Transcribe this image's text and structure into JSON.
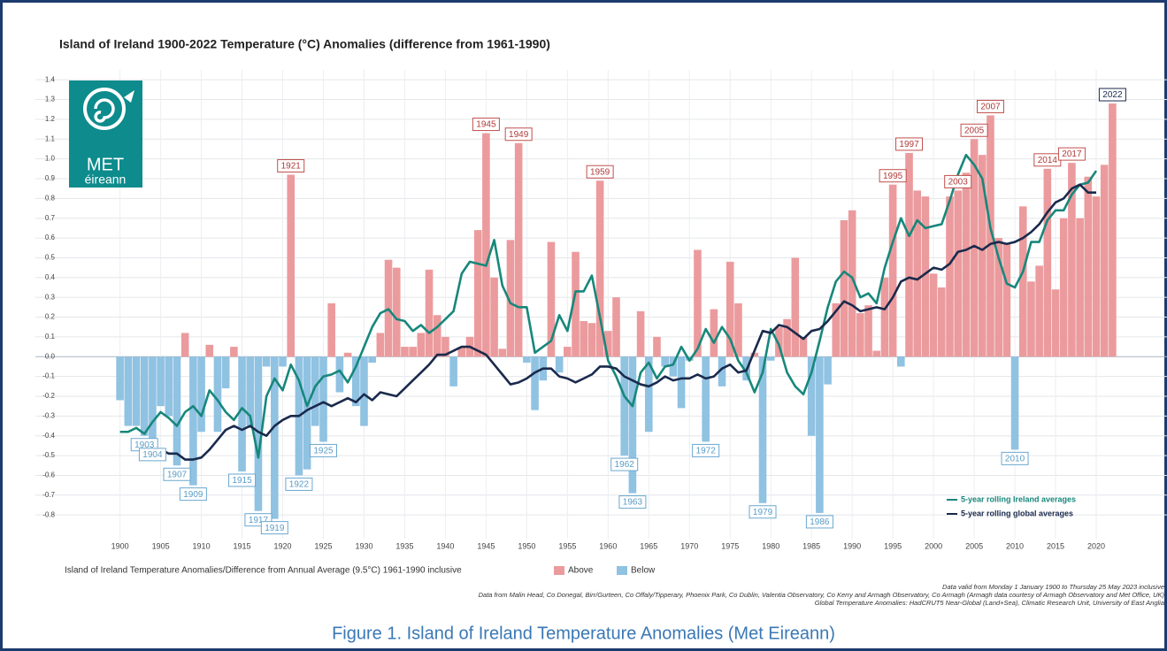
{
  "chart_data": {
    "type": "bar",
    "title": "Island of Ireland 1900-2022 Temperature (°C) Anomalies (difference from 1961-1990)",
    "x": [
      1900,
      1901,
      1902,
      1903,
      1904,
      1905,
      1906,
      1907,
      1908,
      1909,
      1910,
      1911,
      1912,
      1913,
      1914,
      1915,
      1916,
      1917,
      1918,
      1919,
      1920,
      1921,
      1922,
      1923,
      1924,
      1925,
      1926,
      1927,
      1928,
      1929,
      1930,
      1931,
      1932,
      1933,
      1934,
      1935,
      1936,
      1937,
      1938,
      1939,
      1940,
      1941,
      1942,
      1943,
      1944,
      1945,
      1946,
      1947,
      1948,
      1949,
      1950,
      1951,
      1952,
      1953,
      1954,
      1955,
      1956,
      1957,
      1958,
      1959,
      1960,
      1961,
      1962,
      1963,
      1964,
      1965,
      1966,
      1967,
      1968,
      1969,
      1970,
      1971,
      1972,
      1973,
      1974,
      1975,
      1976,
      1977,
      1978,
      1979,
      1980,
      1981,
      1982,
      1983,
      1984,
      1985,
      1986,
      1987,
      1988,
      1989,
      1990,
      1991,
      1992,
      1993,
      1994,
      1995,
      1996,
      1997,
      1998,
      1999,
      2000,
      2001,
      2002,
      2003,
      2004,
      2005,
      2006,
      2007,
      2008,
      2009,
      2010,
      2011,
      2012,
      2013,
      2014,
      2015,
      2016,
      2017,
      2018,
      2019,
      2020,
      2021,
      2022
    ],
    "values": [
      -0.22,
      -0.35,
      -0.35,
      -0.4,
      -0.45,
      -0.25,
      -0.3,
      -0.55,
      0.12,
      -0.65,
      -0.38,
      0.06,
      -0.38,
      -0.16,
      0.05,
      -0.58,
      -0.35,
      -0.78,
      -0.05,
      -0.82,
      -0.05,
      0.92,
      -0.6,
      -0.57,
      -0.35,
      -0.43,
      0.27,
      -0.18,
      0.02,
      -0.25,
      -0.35,
      -0.03,
      0.12,
      0.49,
      0.45,
      0.05,
      0.05,
      0.12,
      0.44,
      0.21,
      0.1,
      -0.15,
      0.05,
      0.1,
      0.64,
      1.13,
      0.4,
      0.04,
      0.59,
      1.08,
      -0.03,
      -0.27,
      -0.12,
      0.58,
      -0.08,
      0.05,
      0.53,
      0.18,
      0.17,
      0.89,
      0.13,
      0.3,
      -0.5,
      -0.69,
      0.23,
      -0.38,
      0.1,
      -0.05,
      -0.1,
      -0.26,
      -0.02,
      0.54,
      -0.43,
      0.24,
      -0.15,
      0.48,
      0.27,
      -0.12,
      0.02,
      -0.74,
      -0.02,
      0.15,
      0.19,
      0.5,
      0.1,
      -0.4,
      -0.79,
      -0.14,
      0.27,
      0.69,
      0.74,
      0.22,
      0.26,
      0.03,
      0.4,
      0.87,
      -0.05,
      1.03,
      0.84,
      0.81,
      0.42,
      0.35,
      0.81,
      0.84,
      0.93,
      1.1,
      1.02,
      1.22,
      0.6,
      0.57,
      -0.47,
      0.76,
      0.38,
      0.46,
      0.95,
      0.34,
      0.7,
      0.98,
      0.7,
      0.91,
      0.81,
      0.97,
      1.28
    ],
    "bar_colors": {
      "positive": "#eb9b9d",
      "negative": "#90c2e2"
    },
    "legend_title": "Island of Ireland Temperature Anomalies/Difference from Annual Average (9.5°C) 1961-1990 inclusive",
    "legend_items": [
      "Above",
      "Below"
    ],
    "lines": [
      {
        "name": "5-year rolling Ireland averages",
        "color": "#17877b",
        "values": [
          -0.38,
          -0.38,
          -0.36,
          -0.39,
          -0.33,
          -0.28,
          -0.31,
          -0.35,
          -0.28,
          -0.25,
          -0.3,
          -0.17,
          -0.22,
          -0.28,
          -0.32,
          -0.26,
          -0.3,
          -0.51,
          -0.2,
          -0.11,
          -0.17,
          -0.04,
          -0.12,
          -0.25,
          -0.15,
          -0.1,
          -0.09,
          -0.07,
          -0.13,
          -0.05,
          0.05,
          0.15,
          0.22,
          0.24,
          0.19,
          0.18,
          0.13,
          0.16,
          0.12,
          0.15,
          0.19,
          0.23,
          0.42,
          0.48,
          0.47,
          0.46,
          0.59,
          0.36,
          0.27,
          0.25,
          0.25,
          0.02,
          0.05,
          0.08,
          0.21,
          0.13,
          0.33,
          0.33,
          0.41,
          0.2,
          -0.02,
          -0.1,
          -0.2,
          -0.25,
          -0.08,
          -0.03,
          -0.11,
          -0.05,
          -0.04,
          0.05,
          -0.02,
          0.04,
          0.14,
          0.07,
          0.15,
          0.09,
          -0.02,
          -0.08,
          -0.18,
          -0.08,
          0.14,
          0.06,
          -0.08,
          -0.15,
          -0.19,
          -0.08,
          0.08,
          0.25,
          0.38,
          0.43,
          0.4,
          0.3,
          0.32,
          0.27,
          0.45,
          0.58,
          0.7,
          0.61,
          0.69,
          0.65,
          0.66,
          0.67,
          0.79,
          0.92,
          1.02,
          0.97,
          0.9,
          0.65,
          0.5,
          0.37,
          0.35,
          0.43,
          0.58,
          0.58,
          0.69,
          0.74,
          0.74,
          0.82,
          0.87,
          0.88,
          0.94,
          null,
          null
        ]
      },
      {
        "name": "5-year rolling global averages",
        "color": "#1a2a4c",
        "values": [
          null,
          null,
          -0.42,
          -0.45,
          -0.47,
          -0.47,
          -0.49,
          -0.49,
          -0.52,
          -0.52,
          -0.51,
          -0.47,
          -0.42,
          -0.37,
          -0.35,
          -0.37,
          -0.35,
          -0.38,
          -0.4,
          -0.35,
          -0.32,
          -0.3,
          -0.3,
          -0.27,
          -0.25,
          -0.23,
          -0.25,
          -0.23,
          -0.21,
          -0.23,
          -0.19,
          -0.22,
          -0.18,
          -0.19,
          -0.2,
          -0.16,
          -0.12,
          -0.08,
          -0.04,
          0.01,
          0.01,
          0.03,
          0.05,
          0.05,
          0.03,
          0.01,
          -0.04,
          -0.09,
          -0.14,
          -0.13,
          -0.11,
          -0.08,
          -0.06,
          -0.06,
          -0.1,
          -0.11,
          -0.13,
          -0.11,
          -0.09,
          -0.05,
          -0.05,
          -0.06,
          -0.1,
          -0.12,
          -0.14,
          -0.15,
          -0.13,
          -0.1,
          -0.12,
          -0.11,
          -0.11,
          -0.09,
          -0.11,
          -0.1,
          -0.06,
          -0.04,
          -0.08,
          -0.07,
          0.03,
          0.13,
          0.12,
          0.16,
          0.15,
          0.12,
          0.09,
          0.13,
          0.14,
          0.18,
          0.23,
          0.28,
          0.26,
          0.23,
          0.24,
          0.25,
          0.24,
          0.3,
          0.38,
          0.4,
          0.39,
          0.42,
          0.45,
          0.44,
          0.47,
          0.53,
          0.54,
          0.56,
          0.54,
          0.57,
          0.58,
          0.57,
          0.58,
          0.6,
          0.63,
          0.67,
          0.73,
          0.78,
          0.8,
          0.85,
          0.87,
          0.83,
          0.83,
          null,
          null
        ]
      }
    ],
    "xlim": [
      1889.6,
      2028.7
    ],
    "xticks": [
      1900,
      1905,
      1910,
      1915,
      1920,
      1925,
      1930,
      1935,
      1940,
      1945,
      1950,
      1955,
      1960,
      1965,
      1970,
      1975,
      1980,
      1985,
      1990,
      1995,
      2000,
      2005,
      2010,
      2015,
      2020
    ],
    "ylim": [
      -0.92,
      1.45
    ],
    "yticks": [
      1.4,
      1.3,
      1.2,
      1.1,
      {
        "value": 1,
        "label": "1.0"
      },
      0.9,
      0.8,
      0.7,
      0.6,
      0.5,
      0.4,
      0.3,
      0.2,
      0.1,
      {
        "value": 0,
        "label": "0.0"
      },
      -0.1,
      -0.2,
      -0.3,
      -0.4,
      -0.5,
      -0.6,
      -0.7,
      -0.8
    ],
    "grid": true,
    "annotations": [
      "1903",
      "1904",
      "1907",
      "1909",
      "1915",
      "1917",
      "1919",
      "1921",
      "1922",
      "1925",
      "1945",
      "1949",
      "1959",
      "1962",
      "1963",
      "1972",
      "1979",
      "1986",
      "1995",
      "1997",
      "2003",
      "2005",
      "2007",
      "2010",
      "2014",
      "2017",
      "2022"
    ],
    "notes": [
      "Data valid from Monday 1 January 1900 to Thursday 25 May 2023 inclusive",
      "Data from Malin Head, Co Donegal, Birr/Gurteen, Co Offaly/Tipperary, Phoenix Park, Co Dublin, Valentia Observatory, Co Kerry and Armagh Observatory, Co Armagh (Armagh data courtesy of Armagh Observatory and Met Office, UK)",
      "Global Temperature Anomalies: HadCRUT5 Near-Global (Land+Sea), Climatic Research Unit, University of East Anglia"
    ]
  },
  "logo": {
    "line1": "MET",
    "line2": "éireann"
  },
  "caption": "Figure 1. Island of Ireland Temperature Anomalies (Met Eireann)"
}
